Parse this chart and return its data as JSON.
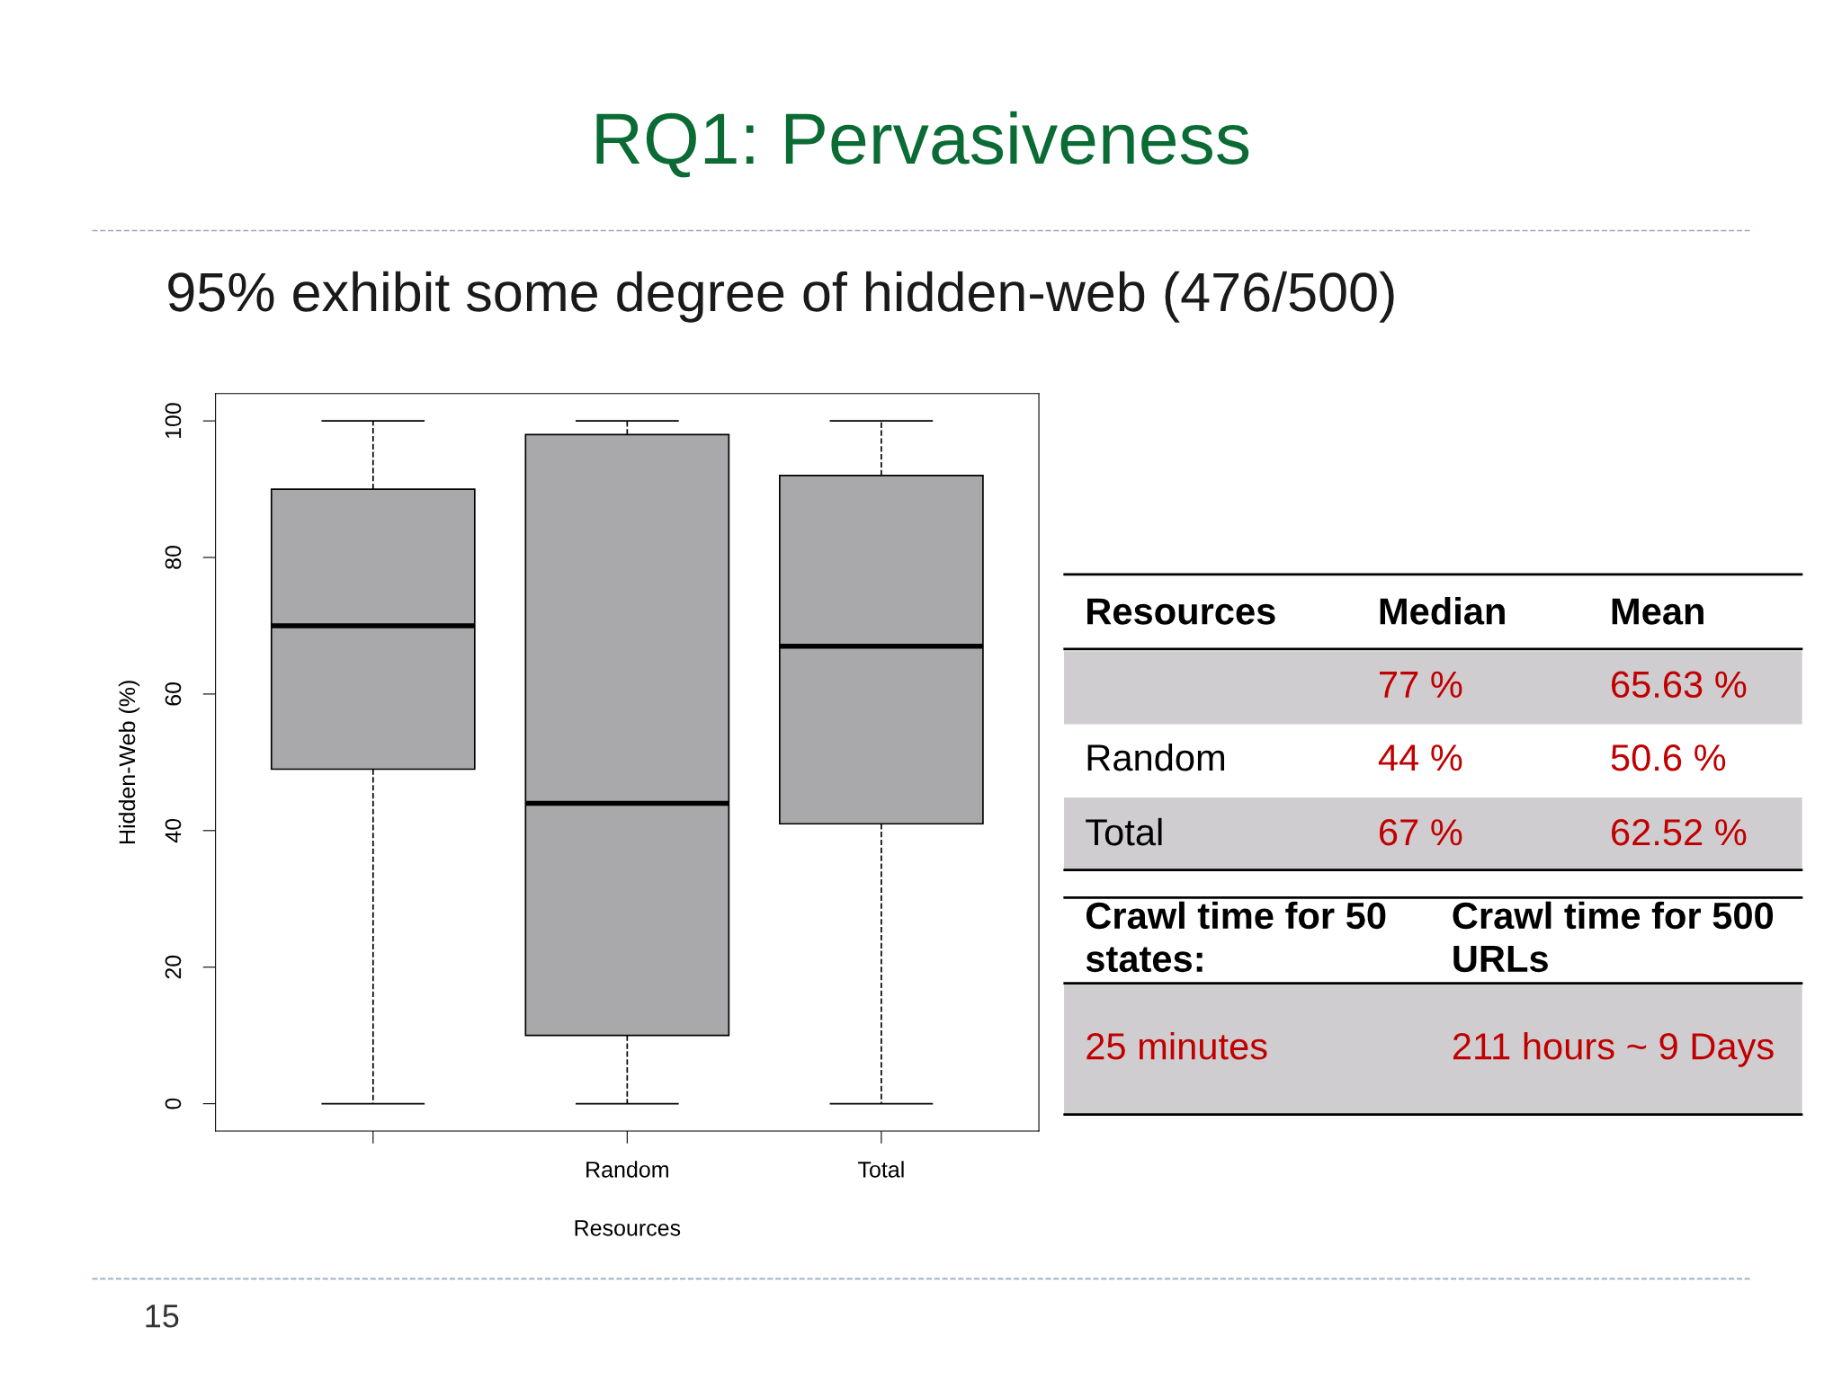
{
  "chart_data": {
    "type": "box",
    "title": "RQ1: Pervasiveness",
    "subtitle": "95% exhibit some degree of hidden-web (476/500)",
    "xlabel": "Resources",
    "ylabel": "Hidden-Web (%)",
    "categories": [
      null,
      "Random",
      "Total"
    ],
    "color": "#a9a8ab",
    "boxes": [
      {
        "low": 0,
        "q1": 49,
        "median": 70,
        "q3": 90,
        "high": 100
      },
      {
        "low": 0,
        "q1": 10,
        "median": 44,
        "q3": 98,
        "high": 100
      },
      {
        "low": 0,
        "q1": 41,
        "median": 67,
        "q3": 92,
        "high": 100
      }
    ],
    "ylim": [
      -4,
      104
    ],
    "yticks": [
      0,
      20,
      40,
      60,
      80,
      100
    ],
    "grid": false,
    "legend": false,
    "annotations": [
      "Resources",
      "Median",
      "Mean",
      "77 %",
      "65.63 %",
      "Random",
      "44 %",
      "50.6 %",
      "Total",
      "67 %",
      "62.52 %",
      "Crawl time for 50 states:",
      "Crawl time for 500 URLs",
      "25 minutes",
      "211 hours ~ 9 Days",
      "15"
    ]
  }
}
